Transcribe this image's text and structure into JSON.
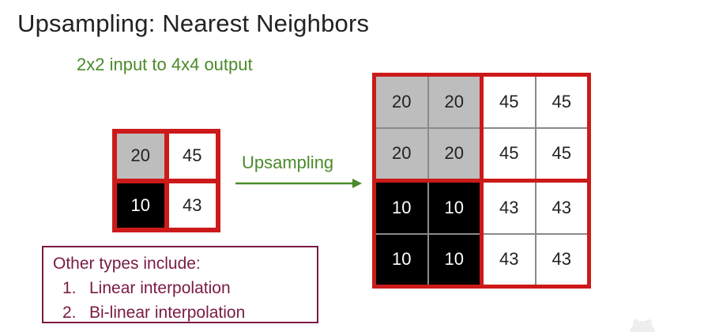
{
  "title": "Upsampling: Nearest Neighbors",
  "subtitle": "2x2 input to 4x4 output",
  "arrow_label": "Upsampling",
  "colors": {
    "border_red": "#cc1a1a",
    "green_text": "#4a8a2a",
    "note_border": "#7a1a44",
    "gray_cell": "#bdbdbd",
    "black_cell": "#000000"
  },
  "input_grid": {
    "cells": [
      {
        "value": "20",
        "shade": "gray"
      },
      {
        "value": "45",
        "shade": "white"
      },
      {
        "value": "10",
        "shade": "black"
      },
      {
        "value": "43",
        "shade": "white"
      }
    ]
  },
  "output_grid": {
    "quadrants": [
      {
        "shade": "gray",
        "cells": [
          "20",
          "20",
          "20",
          "20"
        ]
      },
      {
        "shade": "white",
        "cells": [
          "45",
          "45",
          "45",
          "45"
        ]
      },
      {
        "shade": "black",
        "cells": [
          "10",
          "10",
          "10",
          "10"
        ]
      },
      {
        "shade": "white",
        "cells": [
          "43",
          "43",
          "43",
          "43"
        ]
      }
    ]
  },
  "note": {
    "heading": "Other types include:",
    "items": [
      {
        "num": "1.",
        "label": "Linear interpolation"
      },
      {
        "num": "2.",
        "label": "Bi-linear interpolation"
      }
    ]
  }
}
